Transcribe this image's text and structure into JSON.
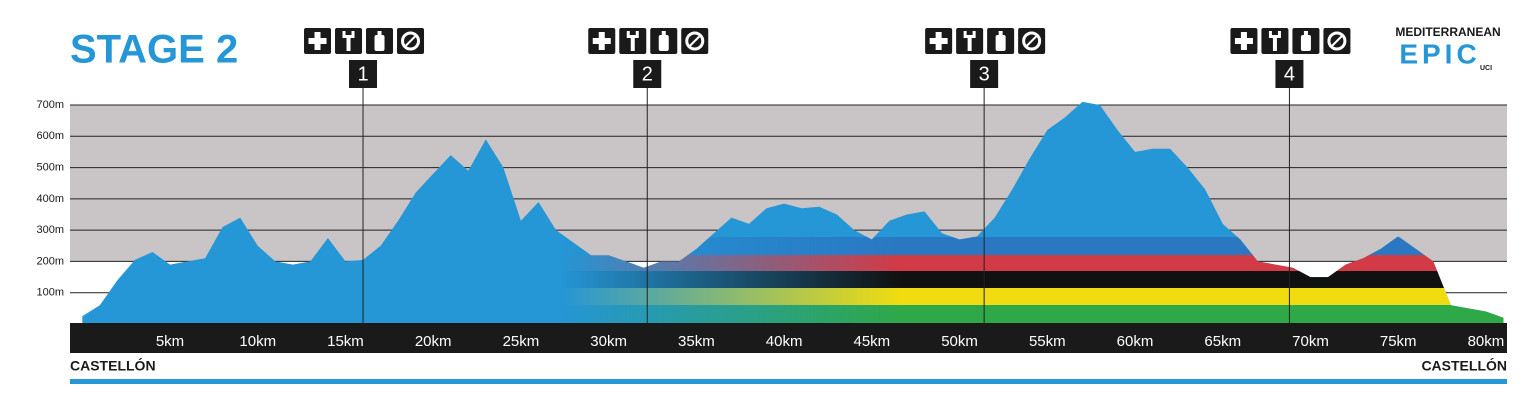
{
  "chart_data": {
    "type": "area",
    "title": "STAGE 2",
    "x": [
      0,
      1,
      2,
      3,
      4,
      5,
      6,
      7,
      8,
      9,
      10,
      11,
      12,
      13,
      14,
      15,
      16,
      17,
      18,
      19,
      20,
      21,
      22,
      23,
      24,
      25,
      26,
      27,
      28,
      29,
      30,
      31,
      32,
      33,
      34,
      35,
      36,
      37,
      38,
      39,
      40,
      41,
      42,
      43,
      44,
      45,
      46,
      47,
      48,
      49,
      50,
      51,
      52,
      53,
      54,
      55,
      56,
      57,
      58,
      59,
      60,
      61,
      62,
      63,
      64,
      65,
      66,
      67,
      68,
      69,
      70,
      71,
      72,
      73,
      74,
      75,
      76,
      77,
      78,
      79,
      80,
      81
    ],
    "values": [
      25,
      60,
      140,
      205,
      230,
      190,
      200,
      210,
      310,
      340,
      250,
      200,
      190,
      200,
      275,
      200,
      205,
      250,
      330,
      420,
      480,
      540,
      490,
      590,
      500,
      330,
      390,
      300,
      260,
      220,
      220,
      200,
      180,
      200,
      200,
      240,
      290,
      340,
      320,
      370,
      385,
      370,
      375,
      350,
      300,
      270,
      330,
      350,
      360,
      290,
      270,
      280,
      340,
      430,
      530,
      620,
      660,
      710,
      700,
      620,
      550,
      560,
      560,
      500,
      430,
      320,
      270,
      200,
      190,
      180,
      150,
      150,
      190,
      210,
      240,
      280,
      240,
      200,
      60,
      50,
      40,
      20
    ],
    "color": "#2596d6",
    "xlim": [
      -0.7,
      81.2
    ],
    "ylim": [
      0,
      700
    ],
    "xticks": [
      {
        "value": 5,
        "label": "5km"
      },
      {
        "value": 10,
        "label": "10km"
      },
      {
        "value": 15,
        "label": "15km"
      },
      {
        "value": 20,
        "label": "20km"
      },
      {
        "value": 25,
        "label": "25km"
      },
      {
        "value": 30,
        "label": "30km"
      },
      {
        "value": 35,
        "label": "35km"
      },
      {
        "value": 40,
        "label": "40km"
      },
      {
        "value": 45,
        "label": "45km"
      },
      {
        "value": 50,
        "label": "50km"
      },
      {
        "value": 55,
        "label": "55km"
      },
      {
        "value": 60,
        "label": "60km"
      },
      {
        "value": 65,
        "label": "65km"
      },
      {
        "value": 70,
        "label": "70km"
      },
      {
        "value": 75,
        "label": "75km"
      },
      {
        "value": 80,
        "label": "80km"
      }
    ],
    "yticks": [
      {
        "value": 100,
        "label": "100m"
      },
      {
        "value": 200,
        "label": "200m"
      },
      {
        "value": 300,
        "label": "300m"
      },
      {
        "value": 400,
        "label": "400m"
      },
      {
        "value": 500,
        "label": "500m"
      },
      {
        "value": 600,
        "label": "600m"
      },
      {
        "value": 700,
        "label": "700m"
      }
    ],
    "grid": true,
    "start_label": "CASTELLÓN",
    "finish_label": "CASTELLÓN",
    "feed_zones": [
      {
        "label": "1",
        "km": 16
      },
      {
        "label": "2",
        "km": 32.2
      },
      {
        "label": "3",
        "km": 51.4
      },
      {
        "label": "4",
        "km": 68.8
      }
    ]
  },
  "logo": {
    "line1": "MEDITERRANEAN",
    "line2": "EPIC",
    "badge": "UCI"
  }
}
